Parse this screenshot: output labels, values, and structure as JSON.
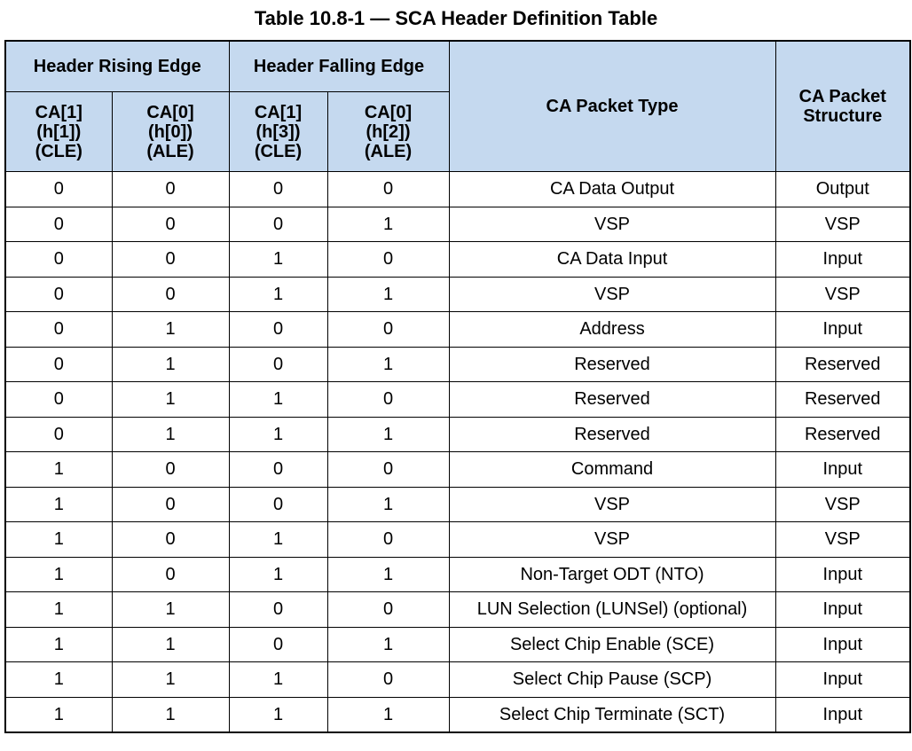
{
  "title": "Table 10.8-1 — SCA Header Definition Table",
  "header": {
    "rising_edge": "Header Rising Edge",
    "falling_edge": "Header Falling Edge",
    "packet_type": "CA Packet Type",
    "packet_structure_line1": "CA Packet",
    "packet_structure_line2": "Structure",
    "sub_columns": [
      {
        "line1": "CA[1]",
        "line2": "(h[1])",
        "line3": "(CLE)"
      },
      {
        "line1": "CA[0]",
        "line2": "(h[0])",
        "line3": "(ALE)"
      },
      {
        "line1": "CA[1]",
        "line2": "(h[3])",
        "line3": "(CLE)"
      },
      {
        "line1": "CA[0]",
        "line2": "(h[2])",
        "line3": "(ALE)"
      }
    ]
  },
  "rows": [
    {
      "c0": "0",
      "c1": "0",
      "c2": "0",
      "c3": "0",
      "type": "CA Data Output",
      "structure": "Output"
    },
    {
      "c0": "0",
      "c1": "0",
      "c2": "0",
      "c3": "1",
      "type": "VSP",
      "structure": "VSP"
    },
    {
      "c0": "0",
      "c1": "0",
      "c2": "1",
      "c3": "0",
      "type": "CA Data Input",
      "structure": "Input"
    },
    {
      "c0": "0",
      "c1": "0",
      "c2": "1",
      "c3": "1",
      "type": "VSP",
      "structure": "VSP"
    },
    {
      "c0": "0",
      "c1": "1",
      "c2": "0",
      "c3": "0",
      "type": "Address",
      "structure": "Input"
    },
    {
      "c0": "0",
      "c1": "1",
      "c2": "0",
      "c3": "1",
      "type": "Reserved",
      "structure": "Reserved"
    },
    {
      "c0": "0",
      "c1": "1",
      "c2": "1",
      "c3": "0",
      "type": "Reserved",
      "structure": "Reserved"
    },
    {
      "c0": "0",
      "c1": "1",
      "c2": "1",
      "c3": "1",
      "type": "Reserved",
      "structure": "Reserved"
    },
    {
      "c0": "1",
      "c1": "0",
      "c2": "0",
      "c3": "0",
      "type": "Command",
      "structure": "Input"
    },
    {
      "c0": "1",
      "c1": "0",
      "c2": "0",
      "c3": "1",
      "type": "VSP",
      "structure": "VSP"
    },
    {
      "c0": "1",
      "c1": "0",
      "c2": "1",
      "c3": "0",
      "type": "VSP",
      "structure": "VSP"
    },
    {
      "c0": "1",
      "c1": "0",
      "c2": "1",
      "c3": "1",
      "type": "Non-Target ODT (NTO)",
      "structure": "Input"
    },
    {
      "c0": "1",
      "c1": "1",
      "c2": "0",
      "c3": "0",
      "type": "LUN Selection (LUNSel) (optional)",
      "structure": "Input"
    },
    {
      "c0": "1",
      "c1": "1",
      "c2": "0",
      "c3": "1",
      "type": "Select Chip Enable (SCE)",
      "structure": "Input"
    },
    {
      "c0": "1",
      "c1": "1",
      "c2": "1",
      "c3": "0",
      "type": "Select Chip Pause (SCP)",
      "structure": "Input"
    },
    {
      "c0": "1",
      "c1": "1",
      "c2": "1",
      "c3": "1",
      "type": "Select Chip Terminate (SCT)",
      "structure": "Input"
    }
  ]
}
